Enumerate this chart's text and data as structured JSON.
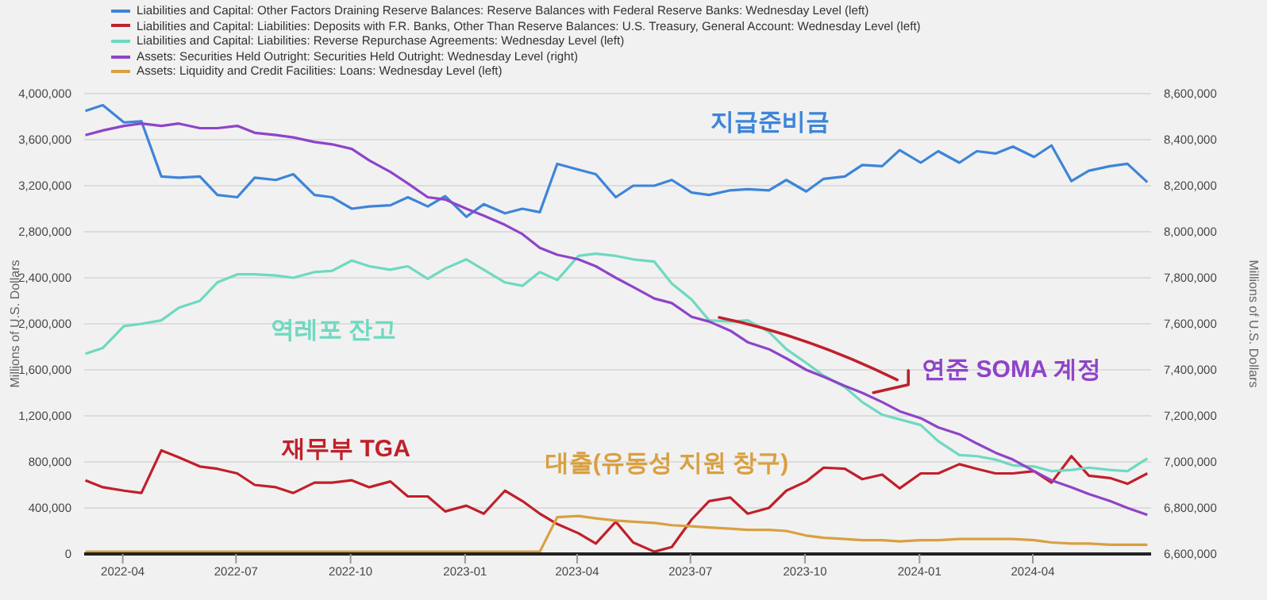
{
  "chart_data": {
    "type": "line",
    "ylabel": "Millions of U.S. Dollars",
    "y2label": "Millions of U.S. Dollars",
    "legend": "top",
    "grid": "y",
    "x": [
      "2022-03-02",
      "2022-03-16",
      "2022-04-02",
      "2022-04-16",
      "2022-05-02",
      "2022-05-16",
      "2022-06-02",
      "2022-06-16",
      "2022-07-02",
      "2022-07-16",
      "2022-08-02",
      "2022-08-16",
      "2022-09-02",
      "2022-09-16",
      "2022-10-02",
      "2022-10-16",
      "2022-11-02",
      "2022-11-16",
      "2022-12-02",
      "2022-12-16",
      "2023-01-02",
      "2023-01-16",
      "2023-02-02",
      "2023-02-16",
      "2023-03-02",
      "2023-03-16",
      "2023-04-02",
      "2023-04-16",
      "2023-05-02",
      "2023-05-16",
      "2023-06-02",
      "2023-06-16",
      "2023-07-02",
      "2023-07-16",
      "2023-08-02",
      "2023-08-16",
      "2023-09-02",
      "2023-09-16",
      "2023-10-02",
      "2023-10-16",
      "2023-11-02",
      "2023-11-16",
      "2023-12-02",
      "2023-12-16",
      "2024-01-02",
      "2024-01-16",
      "2024-02-02",
      "2024-02-16",
      "2024-03-02",
      "2024-03-16",
      "2024-04-02",
      "2024-04-16",
      "2024-05-02",
      "2024-05-16",
      "2024-06-02",
      "2024-06-16",
      "2024-07-02"
    ],
    "xlim": [
      "2022-03-01",
      "2024-07-05"
    ],
    "xticks": [
      "2022-04",
      "2022-07",
      "2022-10",
      "2023-01",
      "2023-04",
      "2023-07",
      "2023-10",
      "2024-01",
      "2024-04"
    ],
    "ylim": [
      0,
      4000000
    ],
    "yticks": [
      0,
      {
        "value": 400000,
        "label": "400,000"
      },
      {
        "value": 800000,
        "label": "800,000"
      },
      {
        "value": 1200000,
        "label": "1,200,000"
      },
      {
        "value": 1600000,
        "label": "1,600,000"
      },
      {
        "value": 2000000,
        "label": "2,000,000"
      },
      {
        "value": 2400000,
        "label": "2,400,000"
      },
      {
        "value": 2800000,
        "label": "2,800,000"
      },
      {
        "value": 3200000,
        "label": "3,200,000"
      },
      {
        "value": 3600000,
        "label": "3,600,000"
      },
      {
        "value": 4000000,
        "label": "4,000,000"
      }
    ],
    "y2lim": [
      6600000,
      8600000
    ],
    "y2ticks": [
      {
        "value": 6600000,
        "label": "6,600,000"
      },
      {
        "value": 6800000,
        "label": "6,800,000"
      },
      {
        "value": 7000000,
        "label": "7,000,000"
      },
      {
        "value": 7200000,
        "label": "7,200,000"
      },
      {
        "value": 7400000,
        "label": "7,400,000"
      },
      {
        "value": 7600000,
        "label": "7,600,000"
      },
      {
        "value": 7800000,
        "label": "7,800,000"
      },
      {
        "value": 8000000,
        "label": "8,000,000"
      },
      {
        "value": 8200000,
        "label": "8,200,000"
      },
      {
        "value": 8400000,
        "label": "8,400,000"
      },
      {
        "value": 8600000,
        "label": "8,600,000"
      }
    ],
    "series": [
      {
        "name": "Liabilities and Capital: Other Factors Draining Reserve Balances: Reserve Balances with Federal Reserve Banks: Wednesday Level (left)",
        "color": "#3d85d8",
        "values": [
          3850000,
          3900000,
          3750000,
          3760000,
          3280000,
          3270000,
          3280000,
          3120000,
          3100000,
          3270000,
          3250000,
          3300000,
          3120000,
          3100000,
          3000000,
          3020000,
          3030000,
          3100000,
          3020000,
          3110000,
          2930000,
          3040000,
          2960000,
          3000000,
          2970000,
          3390000,
          3340000,
          3300000,
          3100000,
          3200000,
          3200000,
          3250000,
          3140000,
          3120000,
          3160000,
          3170000,
          3160000,
          3250000,
          3150000,
          3260000,
          3280000,
          3380000,
          3370000,
          3510000,
          3400000,
          3500000,
          3400000,
          3500000,
          3480000,
          3540000,
          3450000,
          3550000,
          3240000,
          3330000,
          3370000,
          3390000,
          3230000
        ]
      },
      {
        "name": "Liabilities and Capital: Liabilities: Deposits with F.R. Banks, Other Than Reserve Balances: U.S. Treasury, General Account: Wednesday Level (left)",
        "color": "#c0202a",
        "values": [
          640000,
          580000,
          550000,
          530000,
          900000,
          840000,
          760000,
          740000,
          700000,
          600000,
          580000,
          530000,
          620000,
          620000,
          640000,
          580000,
          630000,
          500000,
          500000,
          370000,
          420000,
          350000,
          550000,
          460000,
          350000,
          260000,
          180000,
          90000,
          280000,
          100000,
          20000,
          60000,
          300000,
          460000,
          490000,
          350000,
          400000,
          550000,
          630000,
          750000,
          740000,
          650000,
          690000,
          570000,
          700000,
          700000,
          780000,
          740000,
          700000,
          700000,
          720000,
          620000,
          850000,
          680000,
          660000,
          610000,
          700000
        ]
      },
      {
        "name": "Liabilities and Capital: Liabilities: Reverse Repurchase Agreements: Wednesday Level (left)",
        "color": "#6ed9c0",
        "values": [
          1740000,
          1790000,
          1980000,
          2000000,
          2030000,
          2140000,
          2200000,
          2360000,
          2430000,
          2430000,
          2420000,
          2400000,
          2450000,
          2460000,
          2550000,
          2500000,
          2470000,
          2500000,
          2390000,
          2480000,
          2560000,
          2470000,
          2360000,
          2330000,
          2450000,
          2380000,
          2590000,
          2610000,
          2590000,
          2560000,
          2540000,
          2350000,
          2210000,
          2030000,
          2020000,
          2030000,
          1930000,
          1780000,
          1660000,
          1550000,
          1450000,
          1320000,
          1210000,
          1170000,
          1120000,
          980000,
          860000,
          850000,
          820000,
          770000,
          760000,
          720000,
          730000,
          750000,
          730000,
          720000,
          830000
        ]
      },
      {
        "name": "Assets: Securities Held Outright: Securities Held Outright: Wednesday Level (right)",
        "color": "#8e44c8",
        "axis": "y2",
        "values": [
          8420000,
          8440000,
          8460000,
          8470000,
          8460000,
          8470000,
          8450000,
          8450000,
          8460000,
          8430000,
          8420000,
          8410000,
          8390000,
          8380000,
          8360000,
          8310000,
          8260000,
          8210000,
          8150000,
          8140000,
          8100000,
          8070000,
          8030000,
          7990000,
          7930000,
          7900000,
          7880000,
          7850000,
          7800000,
          7760000,
          7710000,
          7690000,
          7630000,
          7610000,
          7570000,
          7520000,
          7490000,
          7450000,
          7400000,
          7370000,
          7330000,
          7300000,
          7260000,
          7220000,
          7190000,
          7150000,
          7120000,
          7080000,
          7040000,
          7010000,
          6960000,
          6920000,
          6890000,
          6860000,
          6830000,
          6800000,
          6770000
        ]
      },
      {
        "name": "Assets: Liquidity and Credit Facilities: Loans: Wednesday Level (left)",
        "color": "#d9a040",
        "values": [
          20000,
          20000,
          20000,
          20000,
          20000,
          20000,
          20000,
          20000,
          20000,
          20000,
          20000,
          20000,
          20000,
          20000,
          20000,
          20000,
          20000,
          20000,
          20000,
          20000,
          20000,
          20000,
          20000,
          20000,
          20000,
          320000,
          330000,
          310000,
          290000,
          280000,
          270000,
          250000,
          240000,
          230000,
          220000,
          210000,
          210000,
          200000,
          160000,
          140000,
          130000,
          120000,
          120000,
          110000,
          120000,
          120000,
          130000,
          130000,
          130000,
          130000,
          120000,
          100000,
          90000,
          90000,
          80000,
          80000,
          80000
        ]
      }
    ],
    "annotations": [
      "지급준비금",
      "재무부 TGA",
      "역레포 잔고",
      {
        "text": "연준 SOMA 계정",
        "x": "2023-07-24",
        "y": 2060000
      },
      "대출(유동성 지원 창구)"
    ]
  }
}
